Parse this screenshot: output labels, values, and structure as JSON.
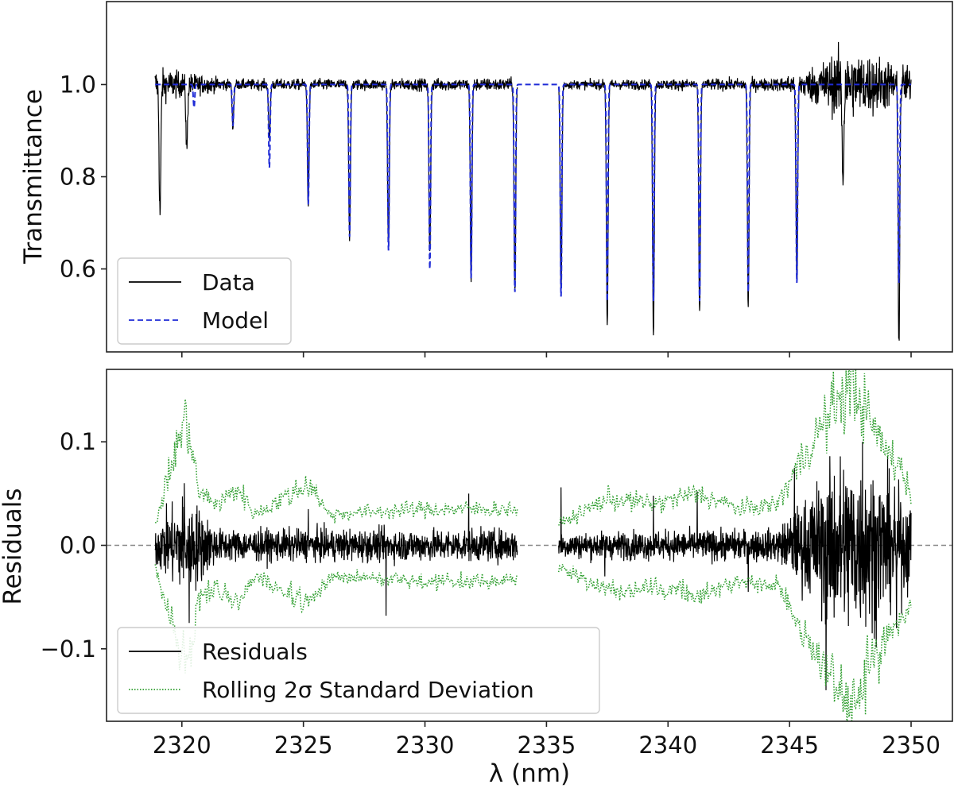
{
  "chart_data": [
    {
      "type": "line",
      "panel": "top",
      "ylabel": "Transmittance",
      "xlabel": "",
      "xlim": [
        2316.9,
        2351.7
      ],
      "ylim": [
        0.42,
        1.18
      ],
      "yticks": [
        0.6,
        0.8,
        1.0
      ],
      "ytick_labels": [
        "0.6",
        "0.8",
        "1.0"
      ],
      "xticks": [
        2320,
        2325,
        2330,
        2335,
        2340,
        2345,
        2350
      ],
      "show_xtick_labels": false,
      "grid": false,
      "legend_position": "lower-left",
      "series": [
        {
          "name": "Data",
          "color": "#000000",
          "style": "solid",
          "segments": [
            [
              2318.9,
              2333.8
            ],
            [
              2335.5,
              2350.0
            ]
          ],
          "baseline": 1.0,
          "noise_envelope": [
            [
              2318.9,
              0.04
            ],
            [
              2320.5,
              0.025
            ],
            [
              2322,
              0.012
            ],
            [
              2333.8,
              0.015
            ],
            [
              2335.5,
              0.01
            ],
            [
              2344.5,
              0.015
            ],
            [
              2345.5,
              0.03
            ],
            [
              2347,
              0.075
            ],
            [
              2348.5,
              0.07
            ],
            [
              2350.0,
              0.04
            ]
          ],
          "absorption_lines": [
            [
              2319.1,
              0.72
            ],
            [
              2320.2,
              0.86
            ],
            [
              2322.1,
              0.91
            ],
            [
              2323.6,
              0.88
            ],
            [
              2325.2,
              0.74
            ],
            [
              2326.9,
              0.67
            ],
            [
              2328.5,
              0.64
            ],
            [
              2330.2,
              0.63
            ],
            [
              2331.9,
              0.58
            ],
            [
              2333.7,
              0.55
            ],
            [
              2335.6,
              0.54
            ],
            [
              2337.5,
              0.48
            ],
            [
              2339.4,
              0.45
            ],
            [
              2341.3,
              0.5
            ],
            [
              2343.3,
              0.52
            ],
            [
              2345.3,
              0.57
            ],
            [
              2347.2,
              0.8
            ],
            [
              2349.5,
              0.45
            ]
          ]
        },
        {
          "name": "Model",
          "color": "#1f2bd6",
          "style": "dashed",
          "x_range": [
            2318.9,
            2350.0
          ],
          "baseline": 1.0,
          "absorption_lines": [
            [
              2320.5,
              0.95
            ],
            [
              2322.1,
              0.91
            ],
            [
              2323.6,
              0.82
            ],
            [
              2325.2,
              0.74
            ],
            [
              2326.9,
              0.67
            ],
            [
              2328.5,
              0.64
            ],
            [
              2330.2,
              0.6
            ],
            [
              2331.9,
              0.58
            ],
            [
              2333.7,
              0.55
            ],
            [
              2335.6,
              0.54
            ],
            [
              2337.5,
              0.53
            ],
            [
              2339.4,
              0.53
            ],
            [
              2341.3,
              0.53
            ],
            [
              2343.3,
              0.55
            ],
            [
              2345.3,
              0.57
            ],
            [
              2349.5,
              0.57
            ]
          ]
        }
      ]
    },
    {
      "type": "line",
      "panel": "bottom",
      "ylabel": "Residuals",
      "xlabel": "λ (nm)",
      "xlim": [
        2316.9,
        2351.7
      ],
      "ylim": [
        -0.17,
        0.17
      ],
      "yticks": [
        -0.1,
        0.0,
        0.1
      ],
      "ytick_labels": [
        "−0.1",
        "0.0",
        "0.1"
      ],
      "xticks": [
        2320,
        2325,
        2330,
        2335,
        2340,
        2345,
        2350
      ],
      "xtick_labels": [
        "2320",
        "2325",
        "2330",
        "2335",
        "2340",
        "2345",
        "2350"
      ],
      "zero_line": {
        "y": 0.0,
        "color": "#888888",
        "style": "dashed"
      },
      "grid": false,
      "legend_position": "lower-left",
      "series": [
        {
          "name": "Residuals",
          "color": "#000000",
          "style": "solid",
          "segments": [
            [
              2318.9,
              2333.8
            ],
            [
              2335.5,
              2350.0
            ]
          ],
          "noise_envelope": [
            [
              2318.9,
              0.02
            ],
            [
              2320.2,
              0.05
            ],
            [
              2321.5,
              0.015
            ],
            [
              2333.8,
              0.015
            ],
            [
              2335.5,
              0.012
            ],
            [
              2344.5,
              0.015
            ],
            [
              2345.5,
              0.04
            ],
            [
              2347,
              0.085
            ],
            [
              2348.5,
              0.075
            ],
            [
              2350.0,
              0.04
            ]
          ],
          "spikes": [
            [
              2320.1,
              0.06
            ],
            [
              2320.3,
              -0.075
            ],
            [
              2325.2,
              0.035
            ],
            [
              2328.4,
              -0.068
            ],
            [
              2331.8,
              0.05
            ],
            [
              2335.6,
              0.056
            ],
            [
              2337.4,
              -0.03
            ],
            [
              2339.4,
              0.048
            ],
            [
              2341.2,
              0.052
            ],
            [
              2343.3,
              -0.045
            ],
            [
              2345.2,
              0.075
            ],
            [
              2346.5,
              -0.14
            ],
            [
              2348.0,
              0.1
            ],
            [
              2349.4,
              -0.08
            ]
          ]
        },
        {
          "name": "Rolling 2σ Standard Deviation",
          "color": "#2e9e2e",
          "style": "dotted",
          "segments": [
            [
              2318.9,
              2333.8
            ],
            [
              2335.5,
              2350.0
            ]
          ],
          "upper_envelope": [
            [
              2318.9,
              0.02
            ],
            [
              2319.6,
              0.08
            ],
            [
              2320.2,
              0.125
            ],
            [
              2320.7,
              0.05
            ],
            [
              2321.5,
              0.04
            ],
            [
              2322.3,
              0.055
            ],
            [
              2323,
              0.03
            ],
            [
              2325.3,
              0.06
            ],
            [
              2326,
              0.03
            ],
            [
              2330,
              0.035
            ],
            [
              2333.8,
              0.035
            ],
            [
              2335.5,
              0.02
            ],
            [
              2337.5,
              0.045
            ],
            [
              2339.5,
              0.04
            ],
            [
              2341.2,
              0.05
            ],
            [
              2343,
              0.035
            ],
            [
              2344.5,
              0.04
            ],
            [
              2345.3,
              0.075
            ],
            [
              2346.2,
              0.11
            ],
            [
              2347.0,
              0.14
            ],
            [
              2347.6,
              0.155
            ],
            [
              2348.3,
              0.12
            ],
            [
              2349.0,
              0.09
            ],
            [
              2349.6,
              0.075
            ],
            [
              2350.0,
              0.05
            ]
          ]
        }
      ]
    }
  ]
}
